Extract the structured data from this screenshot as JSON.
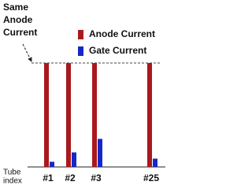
{
  "chart_data": {
    "type": "bar",
    "annotation": [
      "Same",
      "Anode",
      "Current"
    ],
    "x_label": [
      "Tube",
      "index"
    ],
    "categories": [
      "#1",
      "#2",
      "#3",
      "#25"
    ],
    "series": [
      {
        "name": "Anode Current",
        "color": "#a8191e",
        "values": [
          100,
          100,
          100,
          100
        ]
      },
      {
        "name": "Gate Current",
        "color": "#1428c8",
        "values": [
          5,
          14,
          27,
          8
        ]
      }
    ]
  }
}
